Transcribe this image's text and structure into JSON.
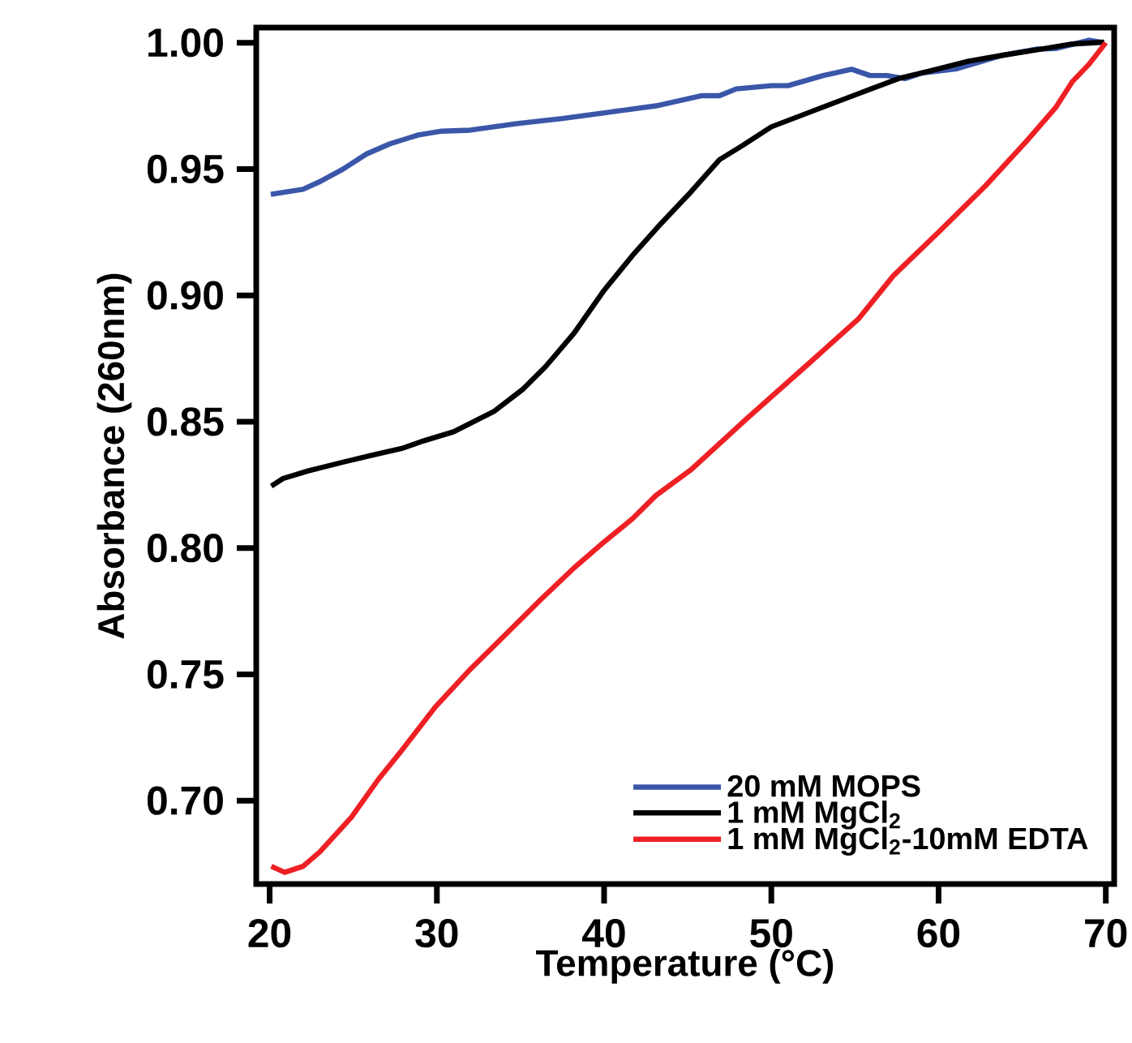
{
  "chart_data": {
    "type": "line",
    "xlabel": "Temperature (°C)",
    "ylabel": "Absorbance (260nm)",
    "xlim": [
      19.2,
      70.5
    ],
    "ylim": [
      0.667,
      1.006
    ],
    "xticks": [
      20,
      30,
      40,
      50,
      60,
      70
    ],
    "yticks": [
      {
        "value": 0.7,
        "label": "0.70"
      },
      {
        "value": 0.75,
        "label": "0.75"
      },
      {
        "value": 0.8,
        "label": "0.80"
      },
      {
        "value": 0.85,
        "label": "0.85"
      },
      {
        "value": 0.9,
        "label": "0.90"
      },
      {
        "value": 0.95,
        "label": "0.95"
      },
      {
        "value": 1.0,
        "label": "1.00"
      }
    ],
    "legend": "bottom right",
    "series": [
      {
        "name": "20 mM MOPS",
        "color": "#3a56a8",
        "x": [
          20.07,
          22.0,
          23.0,
          24.4,
          25.8,
          27.2,
          28.9,
          30.3,
          32.0,
          34.8,
          37.5,
          40.3,
          43.1,
          45.8,
          46.9,
          47.9,
          50.0,
          51.0,
          53.1,
          54.8,
          55.9,
          56.9,
          58.0,
          59.0,
          61.1,
          63.8,
          65.9,
          67.0,
          69.0,
          69.9
        ],
        "values": [
          0.94,
          0.942,
          0.945,
          0.95,
          0.956,
          0.96,
          0.9635,
          0.965,
          0.9654,
          0.968,
          0.97,
          0.9725,
          0.975,
          0.979,
          0.979,
          0.9817,
          0.983,
          0.983,
          0.987,
          0.9895,
          0.987,
          0.987,
          0.9858,
          0.988,
          0.9897,
          0.995,
          0.9975,
          0.9977,
          1.001,
          1.0
        ]
      },
      {
        "name": "1 mM MgCl$_{2}$",
        "color": "#000000",
        "x": [
          20.1,
          20.8,
          22.3,
          24.4,
          26.1,
          27.9,
          29.2,
          31.0,
          33.4,
          35.1,
          36.5,
          38.2,
          40.0,
          41.7,
          43.4,
          45.2,
          46.9,
          48.3,
          50.0,
          52.1,
          54.2,
          56.2,
          57.6,
          59.7,
          61.8,
          63.8,
          65.9,
          68.0,
          69.9
        ],
        "values": [
          0.8245,
          0.8275,
          0.8305,
          0.834,
          0.8367,
          0.8394,
          0.8424,
          0.846,
          0.854,
          0.8626,
          0.8718,
          0.885,
          0.902,
          0.9158,
          0.9284,
          0.941,
          0.9537,
          0.9594,
          0.9667,
          0.972,
          0.9773,
          0.9823,
          0.9858,
          0.9892,
          0.9927,
          0.995,
          0.9972,
          0.9995,
          1.0002
        ]
      },
      {
        "name": "1 mM MgCl$_{2}$-10mM EDTA",
        "color": "#ee2024",
        "x": [
          20.1,
          20.9,
          22.0,
          23.0,
          24.9,
          26.5,
          27.9,
          29.9,
          32.0,
          34.1,
          36.2,
          38.2,
          40.0,
          41.7,
          43.1,
          45.2,
          48.6,
          52.1,
          55.2,
          57.3,
          60.0,
          62.8,
          65.2,
          67.0,
          68.0,
          69.0,
          70.0
        ],
        "values": [
          0.674,
          0.6716,
          0.674,
          0.6797,
          0.6935,
          0.7084,
          0.7199,
          0.737,
          0.752,
          0.7657,
          0.7795,
          0.7921,
          0.8024,
          0.8116,
          0.8208,
          0.831,
          0.8516,
          0.8722,
          0.8906,
          0.9078,
          0.925,
          0.9433,
          0.9606,
          0.9743,
          0.9846,
          0.9915,
          1.0
        ]
      }
    ]
  }
}
